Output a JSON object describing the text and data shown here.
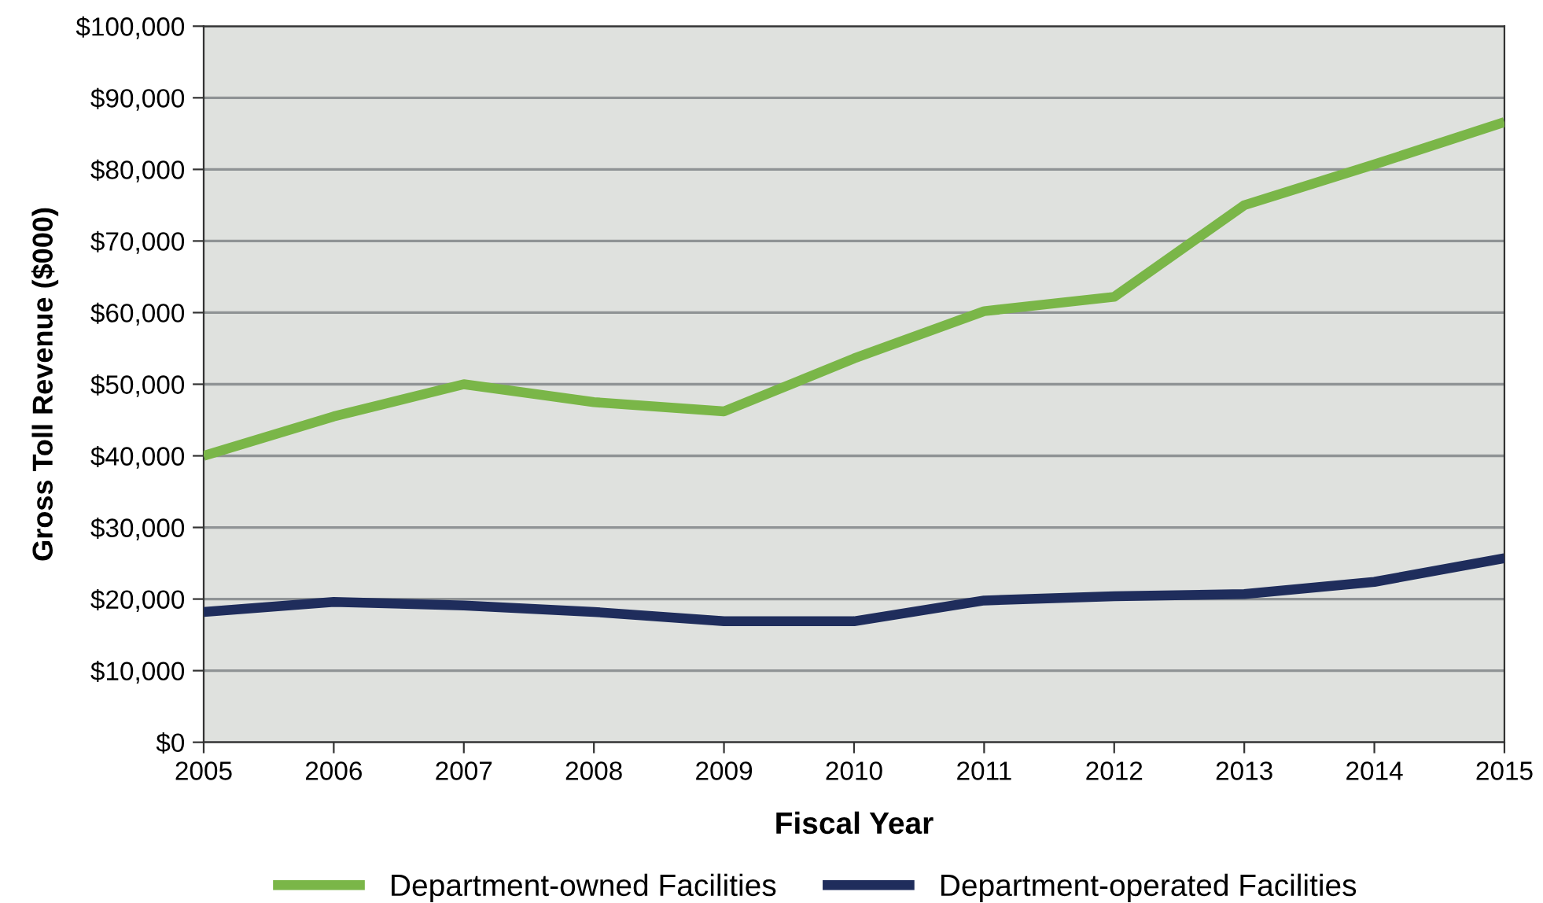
{
  "chart_data": {
    "type": "line",
    "xlabel": "Fiscal Year",
    "ylabel": "Gross Toll Revenue ($000)",
    "x": [
      2005,
      2006,
      2007,
      2008,
      2009,
      2010,
      2011,
      2012,
      2013,
      2014,
      2015
    ],
    "series": [
      {
        "name": "Department-owned Facilities",
        "color": "#7ab648",
        "values": [
          40000,
          45500,
          50000,
          47500,
          46200,
          53600,
          60200,
          62200,
          75000,
          80700,
          86600
        ]
      },
      {
        "name": "Department-operated Facilities",
        "color": "#1f2d5c",
        "values": [
          18200,
          19600,
          19100,
          18200,
          16900,
          16900,
          19800,
          20400,
          20700,
          22400,
          25700
        ]
      }
    ],
    "xlim": [
      2005,
      2015
    ],
    "xticks": [
      2005,
      2006,
      2007,
      2008,
      2009,
      2010,
      2011,
      2012,
      2013,
      2014,
      2015
    ],
    "ylim": [
      0,
      100000
    ],
    "yticks": [
      {
        "value": 0,
        "label": "$0"
      },
      {
        "value": 10000,
        "label": "$10,000"
      },
      {
        "value": 20000,
        "label": "$20,000"
      },
      {
        "value": 30000,
        "label": "$30,000"
      },
      {
        "value": 40000,
        "label": "$40,000"
      },
      {
        "value": 50000,
        "label": "$50,000"
      },
      {
        "value": 60000,
        "label": "$60,000"
      },
      {
        "value": 70000,
        "label": "$70,000"
      },
      {
        "value": 80000,
        "label": "$80,000"
      },
      {
        "value": 90000,
        "label": "$90,000"
      },
      {
        "value": 100000,
        "label": "$100,000"
      }
    ],
    "grid": "y",
    "legend": "bottom",
    "marker": "none",
    "line_style": "solid"
  }
}
